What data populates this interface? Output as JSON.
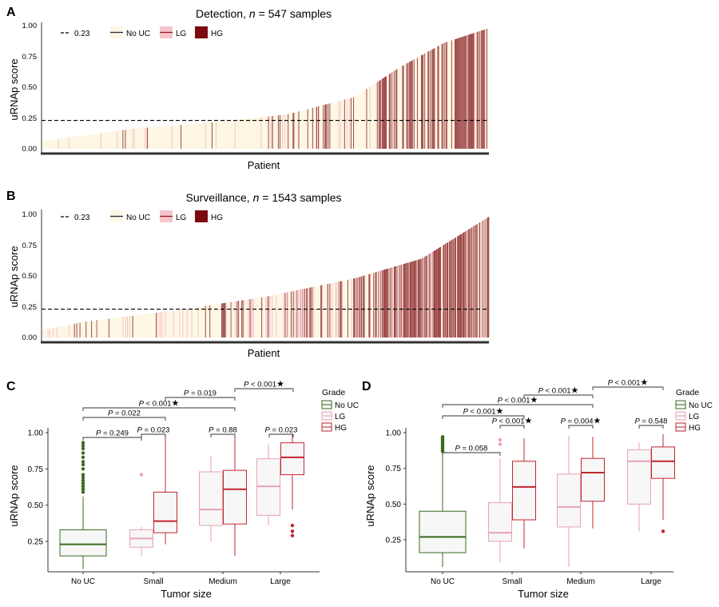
{
  "colors": {
    "no_uc_fill": "#fdf7e3",
    "lg_fill": "#f4c6cc",
    "hg_fill": "#9e4a4a",
    "no_uc_box": "#3a6b1e",
    "lg_box": "#eaa2b3",
    "hg_box": "#c0272d",
    "box_fill": "#f7f7f7"
  },
  "panel_a": {
    "letter": "A",
    "title_prefix": "Detection, ",
    "title_n": "n",
    "title_suffix": " = 547 samples",
    "ylabel": "uRNAp score",
    "xlabel": "Patient",
    "threshold_label": "0.23",
    "legend": [
      "No UC",
      "LG",
      "HG"
    ],
    "y_ticks": [
      "0.00",
      "0.25",
      "0.50",
      "0.75",
      "1.00"
    ]
  },
  "panel_b": {
    "letter": "B",
    "title_prefix": "Surveillance, ",
    "title_n": "n",
    "title_suffix": " = 1543 samples",
    "ylabel": "uRNAp score",
    "xlabel": "Patient",
    "threshold_label": "0.23",
    "legend": [
      "No UC",
      "LG",
      "HG"
    ],
    "y_ticks": [
      "0.00",
      "0.25",
      "0.50",
      "0.75",
      "1.00"
    ]
  },
  "panel_c": {
    "letter": "C",
    "ylabel": "uRNAp score",
    "xlabel": "Tumor size",
    "x_ticks": [
      "No UC",
      "Small",
      "Medium",
      "Large"
    ],
    "y_ticks": [
      "0.25",
      "0.50",
      "0.75",
      "1.00"
    ],
    "legend_title": "Grade",
    "legend": [
      "No UC",
      "LG",
      "HG"
    ],
    "pvalues": [
      {
        "text": "P = 0.249",
        "star": ""
      },
      {
        "text": "P = 0.023",
        "star": ""
      },
      {
        "text": "P = 0.88",
        "star": ""
      },
      {
        "text": "P = 0.023",
        "star": ""
      },
      {
        "text": "P = 0.022",
        "star": ""
      },
      {
        "text": "P < 0.001",
        "star": "★"
      },
      {
        "text": "P = 0.019",
        "star": ""
      },
      {
        "text": "P < 0.001",
        "star": "★"
      }
    ]
  },
  "panel_d": {
    "letter": "D",
    "ylabel": "uRNAp score",
    "xlabel": "Tumor size",
    "x_ticks": [
      "No UC",
      "Small",
      "Medium",
      "Large"
    ],
    "y_ticks": [
      "0.25",
      "0.50",
      "0.75",
      "1.00"
    ],
    "legend_title": "Grade",
    "legend": [
      "No UC",
      "LG",
      "HG"
    ],
    "pvalues": [
      {
        "text": "P = 0.058",
        "star": ""
      },
      {
        "text": "P < 0.001",
        "star": "★"
      },
      {
        "text": "P = 0.004",
        "star": "★"
      },
      {
        "text": "P = 0.548",
        "star": ""
      },
      {
        "text": "P < 0.001",
        "star": "★"
      },
      {
        "text": "P < 0.001",
        "star": "★"
      },
      {
        "text": "P < 0.001",
        "star": "★"
      },
      {
        "text": "P < 0.001",
        "star": "★"
      }
    ]
  },
  "chart_data": [
    {
      "type": "bar",
      "panel": "A",
      "title": "Detection, n = 547 samples",
      "xlabel": "Patient",
      "ylabel": "uRNAp score",
      "ylim": [
        0,
        1
      ],
      "n": 547,
      "threshold": 0.23,
      "categories": [
        "No UC",
        "LG",
        "HG"
      ],
      "sorted_score_profile": {
        "x_fraction": [
          0,
          0.2,
          0.4,
          0.55,
          0.7,
          0.8,
          0.9,
          1.0
        ],
        "score": [
          0.06,
          0.16,
          0.22,
          0.28,
          0.42,
          0.66,
          0.86,
          0.98
        ]
      },
      "grade_mix": [
        {
          "x_fraction": [
            0,
            0.5
          ],
          "HG": 0.02,
          "LG": 0.05
        },
        {
          "x_fraction": [
            0.5,
            0.75
          ],
          "HG": 0.12,
          "LG": 0.1
        },
        {
          "x_fraction": [
            0.75,
            1.0
          ],
          "HG": 0.55,
          "LG": 0.05
        }
      ]
    },
    {
      "type": "bar",
      "panel": "B",
      "title": "Surveillance, n = 1543 samples",
      "xlabel": "Patient",
      "ylabel": "uRNAp score",
      "ylim": [
        0,
        1
      ],
      "n": 1543,
      "threshold": 0.23,
      "categories": [
        "No UC",
        "LG",
        "HG"
      ],
      "sorted_score_profile": {
        "x_fraction": [
          0,
          0.1,
          0.3,
          0.5,
          0.7,
          0.85,
          1.0
        ],
        "score": [
          0.06,
          0.13,
          0.22,
          0.33,
          0.48,
          0.64,
          0.98
        ]
      },
      "grade_mix": [
        {
          "x_fraction": [
            0,
            0.4
          ],
          "HG": 0.02,
          "LG": 0.04
        },
        {
          "x_fraction": [
            0.4,
            0.7
          ],
          "HG": 0.1,
          "LG": 0.08
        },
        {
          "x_fraction": [
            0.7,
            1.0
          ],
          "HG": 0.35,
          "LG": 0.08
        }
      ]
    },
    {
      "type": "box",
      "panel": "C",
      "xlabel": "Tumor size",
      "ylabel": "uRNAp score",
      "ylim": [
        0.05,
        1.05
      ],
      "categories": [
        "No UC",
        "Small",
        "Medium",
        "Large"
      ],
      "series": [
        {
          "name": "No UC",
          "boxes": [
            {
              "category": "No UC",
              "min": 0.06,
              "q1": 0.15,
              "median": 0.23,
              "q3": 0.33,
              "max": 0.56,
              "outliers": [
                0.59,
                0.61,
                0.63,
                0.65,
                0.67,
                0.69,
                0.71,
                0.75,
                0.78,
                0.8,
                0.83,
                0.86,
                0.89,
                0.91,
                0.93
              ]
            }
          ]
        },
        {
          "name": "LG",
          "boxes": [
            {
              "category": "Small",
              "min": 0.15,
              "q1": 0.21,
              "median": 0.27,
              "q3": 0.33,
              "max": 0.35,
              "outliers": [
                0.71
              ]
            },
            {
              "category": "Medium",
              "min": 0.25,
              "q1": 0.36,
              "median": 0.47,
              "q3": 0.73,
              "max": 0.84,
              "outliers": []
            },
            {
              "category": "Large",
              "min": 0.36,
              "q1": 0.43,
              "median": 0.63,
              "q3": 0.82,
              "max": 0.92,
              "outliers": []
            }
          ]
        },
        {
          "name": "HG",
          "boxes": [
            {
              "category": "Small",
              "min": 0.23,
              "q1": 0.31,
              "median": 0.39,
              "q3": 0.59,
              "max": 0.97,
              "outliers": []
            },
            {
              "category": "Medium",
              "min": 0.15,
              "q1": 0.37,
              "median": 0.61,
              "q3": 0.74,
              "max": 0.97,
              "outliers": []
            },
            {
              "category": "Large",
              "min": 0.47,
              "q1": 0.71,
              "median": 0.83,
              "q3": 0.93,
              "max": 0.99,
              "outliers": [
                0.36,
                0.32,
                0.29
              ]
            }
          ]
        }
      ]
    },
    {
      "type": "box",
      "panel": "D",
      "xlabel": "Tumor size",
      "ylabel": "uRNAp score",
      "ylim": [
        0.05,
        1.05
      ],
      "categories": [
        "No UC",
        "Small",
        "Medium",
        "Large"
      ],
      "series": [
        {
          "name": "No UC",
          "boxes": [
            {
              "category": "No UC",
              "min": 0.06,
              "q1": 0.16,
              "median": 0.27,
              "q3": 0.45,
              "max": 0.86,
              "outliers": [
                0.87,
                0.88,
                0.89,
                0.9,
                0.91,
                0.92,
                0.93,
                0.94,
                0.95,
                0.96,
                0.97
              ]
            }
          ]
        },
        {
          "name": "LG",
          "boxes": [
            {
              "category": "Small",
              "min": 0.09,
              "q1": 0.24,
              "median": 0.3,
              "q3": 0.51,
              "max": 0.82,
              "outliers": [
                0.92,
                0.95
              ]
            },
            {
              "category": "Medium",
              "min": 0.06,
              "q1": 0.34,
              "median": 0.48,
              "q3": 0.71,
              "max": 0.98,
              "outliers": []
            },
            {
              "category": "Large",
              "min": 0.31,
              "q1": 0.5,
              "median": 0.8,
              "q3": 0.88,
              "max": 0.93,
              "outliers": []
            }
          ]
        },
        {
          "name": "HG",
          "boxes": [
            {
              "category": "Small",
              "min": 0.19,
              "q1": 0.39,
              "median": 0.62,
              "q3": 0.8,
              "max": 0.96,
              "outliers": []
            },
            {
              "category": "Medium",
              "min": 0.33,
              "q1": 0.52,
              "median": 0.72,
              "q3": 0.82,
              "max": 0.97,
              "outliers": []
            },
            {
              "category": "Large",
              "min": 0.39,
              "q1": 0.68,
              "median": 0.8,
              "q3": 0.9,
              "max": 0.99,
              "outliers": [
                0.31
              ]
            }
          ]
        }
      ]
    }
  ]
}
